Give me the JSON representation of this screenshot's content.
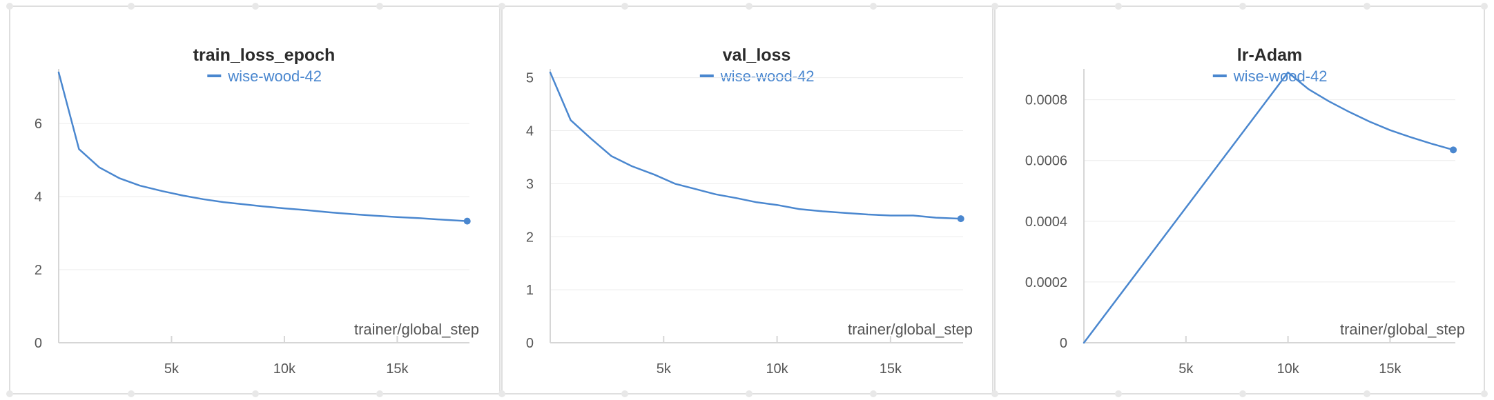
{
  "colors": {
    "series": "#4a87cf",
    "grid": "#ebebeb",
    "axis": "#d6d6d6",
    "text": "#555555"
  },
  "chart_data": [
    {
      "type": "line",
      "title": "train_loss_epoch",
      "xlabel": "trainer/global_step",
      "xlim": [
        0,
        18200
      ],
      "ylim": [
        0,
        7.4
      ],
      "xticks": [
        5000,
        10000,
        15000
      ],
      "xtick_labels": [
        "5k",
        "10k",
        "15k"
      ],
      "yticks": [
        0,
        2,
        4,
        6
      ],
      "ytick_labels": [
        "0",
        "2",
        "4",
        "6"
      ],
      "grid": true,
      "legend_position": "top",
      "series": [
        {
          "name": "wise-wood-42",
          "x": [
            0,
            900,
            1800,
            2700,
            3600,
            4600,
            5500,
            6400,
            7300,
            8200,
            9100,
            10000,
            11000,
            12000,
            13000,
            14000,
            15000,
            16000,
            17000,
            18100
          ],
          "y": [
            7.4,
            5.3,
            4.8,
            4.5,
            4.3,
            4.15,
            4.03,
            3.93,
            3.85,
            3.79,
            3.73,
            3.68,
            3.63,
            3.57,
            3.52,
            3.48,
            3.44,
            3.41,
            3.37,
            3.33
          ]
        }
      ]
    },
    {
      "type": "line",
      "title": "val_loss",
      "xlabel": "trainer/global_step",
      "xlim": [
        0,
        18200
      ],
      "ylim": [
        0,
        5.1
      ],
      "xticks": [
        5000,
        10000,
        15000
      ],
      "xtick_labels": [
        "5k",
        "10k",
        "15k"
      ],
      "yticks": [
        0,
        1,
        2,
        3,
        4,
        5
      ],
      "ytick_labels": [
        "0",
        "1",
        "2",
        "3",
        "4",
        "5"
      ],
      "grid": true,
      "legend_position": "top",
      "series": [
        {
          "name": "wise-wood-42",
          "x": [
            0,
            900,
            1800,
            2700,
            3600,
            4600,
            5500,
            6400,
            7300,
            8200,
            9100,
            10000,
            11000,
            12000,
            13000,
            14000,
            15000,
            16000,
            17000,
            18100
          ],
          "y": [
            5.1,
            4.2,
            3.85,
            3.52,
            3.33,
            3.17,
            3.0,
            2.9,
            2.8,
            2.73,
            2.65,
            2.6,
            2.52,
            2.48,
            2.45,
            2.42,
            2.4,
            2.4,
            2.36,
            2.34
          ]
        }
      ]
    },
    {
      "type": "line",
      "title": "lr-Adam",
      "xlabel": "trainer/global_step",
      "xlim": [
        0,
        18200
      ],
      "ylim": [
        0,
        0.00089
      ],
      "xticks": [
        5000,
        10000,
        15000
      ],
      "xtick_labels": [
        "5k",
        "10k",
        "15k"
      ],
      "yticks": [
        0,
        0.0002,
        0.0004,
        0.0006,
        0.0008
      ],
      "ytick_labels": [
        "0",
        "0.0002",
        "0.0004",
        "0.0006",
        "0.0008"
      ],
      "grid": true,
      "legend_position": "top",
      "series": [
        {
          "name": "wise-wood-42",
          "x": [
            0,
            10000,
            11000,
            12000,
            13000,
            14000,
            15000,
            16000,
            17000,
            18100
          ],
          "y": [
            0,
            0.00089,
            0.000835,
            0.000795,
            0.00076,
            0.000728,
            0.0007,
            0.000677,
            0.000656,
            0.000635
          ]
        }
      ]
    }
  ]
}
